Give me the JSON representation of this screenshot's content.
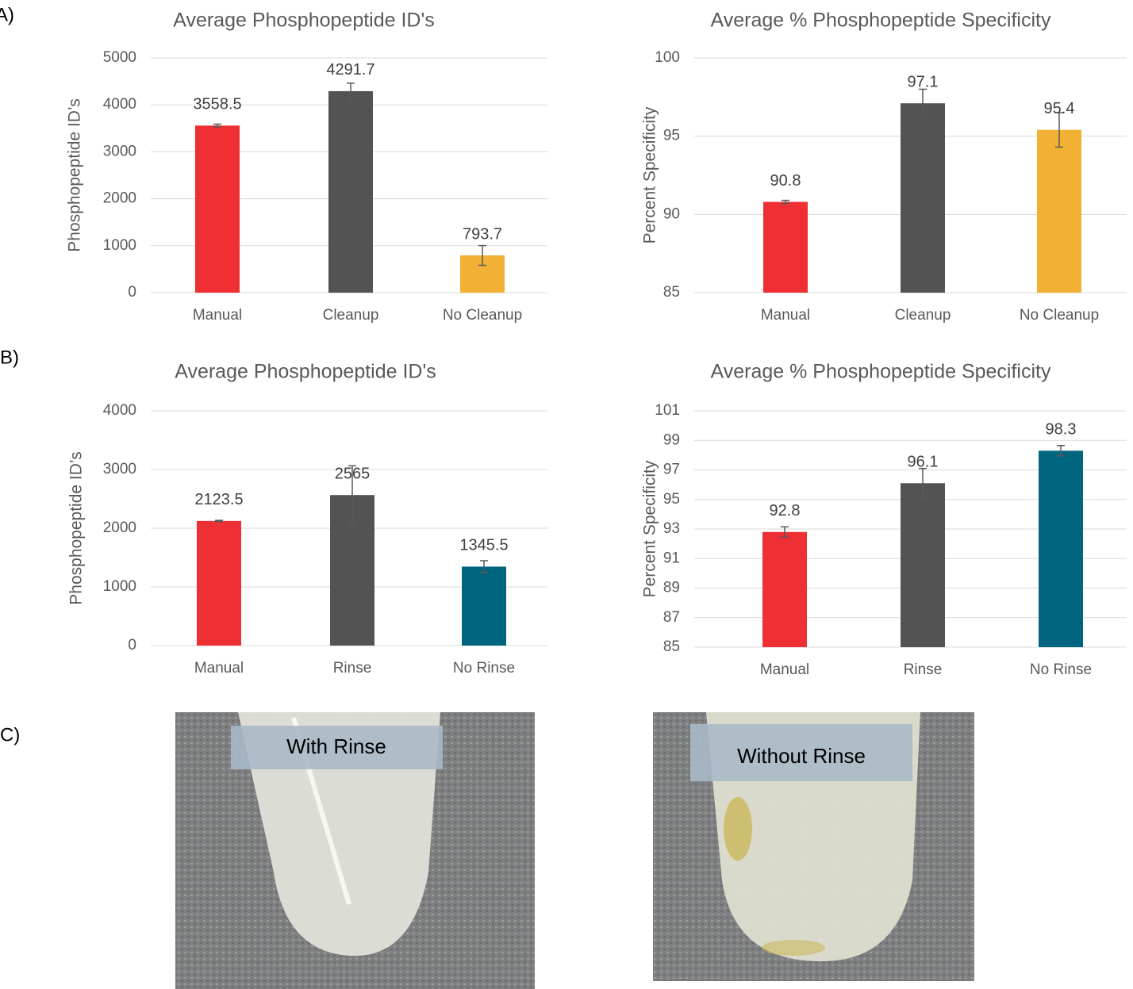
{
  "panel_labels": [
    "A)",
    "B)",
    "C)"
  ],
  "photos": [
    {
      "caption": "With Rinse"
    },
    {
      "caption": "Without Rinse"
    }
  ],
  "chart_data": [
    {
      "type": "bar",
      "title": "Average Phosphopeptide ID's",
      "y_label": "Phosphopeptide ID’s",
      "categories": [
        "Manual",
        "Cleanup",
        "No Cleanup"
      ],
      "values": [
        3558.5,
        4291.7,
        793.7
      ],
      "errors": [
        30,
        170,
        210
      ],
      "colors": [
        "#ee2f34",
        "#535353",
        "#f2b134"
      ],
      "ylim": [
        0,
        5000
      ],
      "yticks": [
        0,
        1000,
        2000,
        3000,
        4000,
        5000
      ],
      "grid": true
    },
    {
      "type": "bar",
      "title": "Average % Phosphopeptide Specificity",
      "y_label": "Percent Specificity",
      "categories": [
        "Manual",
        "Cleanup",
        "No Cleanup"
      ],
      "values": [
        90.8,
        97.1,
        95.4
      ],
      "errors": [
        0.1,
        0.9,
        1.1
      ],
      "colors": [
        "#ee2f34",
        "#535353",
        "#f2b134"
      ],
      "ylim": [
        85,
        100
      ],
      "yticks": [
        85,
        90,
        95,
        100
      ],
      "grid": true
    },
    {
      "type": "bar",
      "title": "Average Phosphopeptide ID's",
      "y_label": "Phosphopeptide ID’s",
      "categories": [
        "Manual",
        "Rinse",
        "No Rinse"
      ],
      "values": [
        2123.5,
        2565,
        1345.5
      ],
      "errors": [
        10,
        500,
        100
      ],
      "colors": [
        "#ee2f34",
        "#535353",
        "#006680"
      ],
      "ylim": [
        0,
        4000
      ],
      "yticks": [
        0,
        1000,
        2000,
        3000,
        4000
      ],
      "grid": true
    },
    {
      "type": "bar",
      "title": "Average % Phosphopeptide Specificity",
      "y_label": "Percent Specificity",
      "categories": [
        "Manual",
        "Rinse",
        "No Rinse"
      ],
      "values": [
        92.8,
        96.1,
        98.3
      ],
      "errors": [
        0.35,
        1.0,
        0.35
      ],
      "colors": [
        "#ee2f34",
        "#535353",
        "#006680"
      ],
      "ylim": [
        85,
        101
      ],
      "yticks": [
        85,
        87,
        89,
        91,
        93,
        95,
        97,
        99,
        101
      ],
      "grid": true
    }
  ]
}
